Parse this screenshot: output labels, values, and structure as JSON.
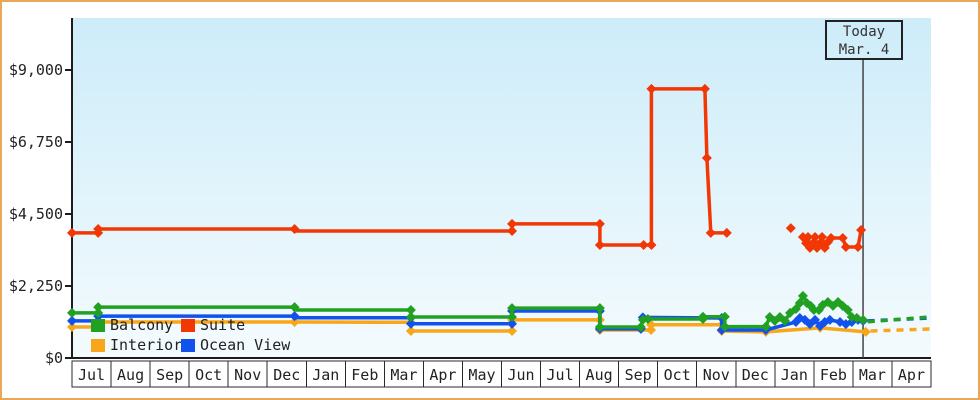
{
  "window": {
    "border_color": "#e9a75a"
  },
  "chart_data": {
    "type": "line",
    "title": "",
    "xlabel": "",
    "ylabel": "",
    "y_axis": {
      "min": 0,
      "max": 9000,
      "ticks": [
        0,
        2250,
        4500,
        6750,
        9000
      ],
      "tick_labels": [
        "$0",
        "$2,250",
        "$4,500",
        "$6,750",
        "$9,000"
      ]
    },
    "x_axis": {
      "months": [
        "Jul",
        "Aug",
        "Sep",
        "Oct",
        "Nov",
        "Dec",
        "Jan",
        "Feb",
        "Mar",
        "Apr",
        "May",
        "Jun",
        "Jul",
        "Aug",
        "Sep",
        "Oct",
        "Nov",
        "Dec",
        "Jan",
        "Feb",
        "Mar",
        "Apr"
      ]
    },
    "today": {
      "line1": "Today",
      "line2": "Mar. 4",
      "month_pos": 20.26
    },
    "grid": false,
    "legend_position": "bottom-left",
    "series": [
      {
        "name": "Interior",
        "color": "#f8a71b",
        "segments": [
          [
            [
              0.0,
              970,
              1
            ],
            [
              0.67,
              970,
              1
            ],
            [
              0.67,
              1125,
              1
            ],
            [
              5.7,
              1125,
              1
            ],
            [
              8.68,
              1115,
              1
            ],
            [
              8.68,
              845,
              1
            ],
            [
              11.27,
              845,
              1
            ],
            [
              11.27,
              1190,
              1
            ],
            [
              13.52,
              1190,
              1
            ],
            [
              13.52,
              875,
              1
            ],
            [
              14.83,
              875,
              1
            ],
            [
              14.83,
              1040,
              1
            ],
            [
              16.64,
              1040,
              1
            ],
            [
              16.64,
              845,
              1
            ],
            [
              17.77,
              815,
              1
            ],
            [
              19.16,
              940,
              1
            ],
            [
              20.33,
              815,
              1
            ]
          ]
        ],
        "future": [
          [
            20.45,
            845,
            0
          ],
          [
            21.97,
            905,
            0
          ]
        ]
      },
      {
        "name": "Ocean View",
        "color": "#1252ec",
        "segments": [
          [
            [
              0.0,
              1160,
              1
            ],
            [
              0.67,
              1160,
              1
            ],
            [
              0.67,
              1310,
              1
            ],
            [
              5.7,
              1310,
              1
            ],
            [
              5.7,
              1260,
              0
            ],
            [
              8.68,
              1260,
              1
            ],
            [
              8.68,
              1070,
              1
            ],
            [
              11.27,
              1070,
              1
            ],
            [
              11.27,
              1470,
              1
            ],
            [
              13.52,
              1470,
              1
            ],
            [
              13.52,
              910,
              1
            ],
            [
              14.57,
              910,
              1
            ],
            [
              14.62,
              1270,
              1
            ],
            [
              16.64,
              1250,
              1
            ],
            [
              16.64,
              875,
              1
            ],
            [
              17.77,
              875,
              1
            ],
            [
              18.54,
              1125,
              1
            ],
            [
              18.64,
              1250,
              1
            ],
            [
              18.77,
              1190,
              1
            ],
            [
              18.9,
              1060,
              1
            ],
            [
              19.03,
              1190,
              1
            ],
            [
              19.16,
              1000,
              1
            ],
            [
              19.28,
              1125,
              1
            ],
            [
              19.41,
              1190,
              1
            ],
            [
              19.67,
              1125,
              1
            ],
            [
              19.82,
              1060,
              1
            ],
            [
              19.97,
              1125,
              1
            ],
            [
              20.13,
              1190,
              1
            ],
            [
              20.26,
              1160,
              1
            ]
          ]
        ],
        "future": [
          [
            20.38,
            1160,
            0
          ],
          [
            21.97,
            1250,
            0
          ]
        ]
      },
      {
        "name": "Balcony",
        "color": "#21a121",
        "segments": [
          [
            [
              0.0,
              1410,
              1
            ],
            [
              0.67,
              1410,
              1
            ],
            [
              0.67,
              1590,
              1
            ],
            [
              5.7,
              1590,
              1
            ],
            [
              5.7,
              1500,
              0
            ],
            [
              8.68,
              1500,
              1
            ],
            [
              8.68,
              1280,
              1
            ],
            [
              11.27,
              1280,
              1
            ],
            [
              11.27,
              1560,
              1
            ],
            [
              13.52,
              1560,
              1
            ],
            [
              13.52,
              970,
              1
            ],
            [
              14.57,
              970,
              1
            ],
            [
              14.62,
              1190,
              1
            ],
            [
              14.75,
              1220,
              1
            ],
            [
              16.16,
              1220,
              1
            ],
            [
              16.16,
              1290,
              1
            ],
            [
              16.72,
              1290,
              1
            ],
            [
              16.72,
              980,
              1
            ],
            [
              17.77,
              980,
              1
            ],
            [
              17.87,
              1280,
              1
            ],
            [
              18.0,
              1160,
              1
            ],
            [
              18.13,
              1280,
              1
            ],
            [
              18.26,
              1160,
              1
            ],
            [
              18.39,
              1410,
              1
            ],
            [
              18.54,
              1530,
              1
            ],
            [
              18.64,
              1720,
              1
            ],
            [
              18.72,
              1940,
              1
            ],
            [
              18.82,
              1720,
              1
            ],
            [
              18.92,
              1630,
              1
            ],
            [
              19.0,
              1500,
              1
            ],
            [
              19.13,
              1500,
              1
            ],
            [
              19.23,
              1660,
              1
            ],
            [
              19.36,
              1750,
              1
            ],
            [
              19.49,
              1630,
              1
            ],
            [
              19.62,
              1750,
              1
            ],
            [
              19.74,
              1630,
              1
            ],
            [
              19.87,
              1500,
              1
            ],
            [
              19.97,
              1280,
              1
            ],
            [
              20.1,
              1250,
              1
            ],
            [
              20.26,
              1190,
              1
            ]
          ]
        ],
        "future": [
          [
            20.38,
            1130,
            0
          ],
          [
            21.97,
            1280,
            0
          ]
        ]
      },
      {
        "name": "Suite",
        "color": "#f23705",
        "segments": [
          [
            [
              0.0,
              3910,
              1
            ],
            [
              0.67,
              3910,
              1
            ],
            [
              0.67,
              4030,
              1
            ],
            [
              5.7,
              4030,
              1
            ],
            [
              5.7,
              3970,
              0
            ],
            [
              11.27,
              3970,
              1
            ],
            [
              11.27,
              4190,
              1
            ],
            [
              13.52,
              4190,
              1
            ],
            [
              13.52,
              3530,
              1
            ],
            [
              14.64,
              3530,
              1
            ],
            [
              14.84,
              3530,
              1
            ],
            [
              14.84,
              8410,
              1
            ],
            [
              16.21,
              8410,
              1
            ],
            [
              16.26,
              6250,
              1
            ],
            [
              16.36,
              3910,
              1
            ],
            [
              16.77,
              3910,
              1
            ]
          ],
          [
            [
              18.41,
              4060,
              1
            ]
          ],
          [
            [
              18.72,
              3780,
              1
            ],
            [
              18.8,
              3590,
              1
            ],
            [
              18.85,
              3780,
              1
            ],
            [
              18.9,
              3440,
              1
            ],
            [
              18.98,
              3590,
              1
            ],
            [
              19.03,
              3780,
              1
            ],
            [
              19.08,
              3440,
              1
            ],
            [
              19.16,
              3590,
              1
            ],
            [
              19.21,
              3780,
              1
            ],
            [
              19.28,
              3440,
              1
            ],
            [
              19.36,
              3620,
              1
            ],
            [
              19.44,
              3750,
              1
            ],
            [
              19.74,
              3750,
              1
            ],
            [
              19.82,
              3470,
              1
            ],
            [
              20.13,
              3470,
              1
            ],
            [
              20.21,
              4000,
              1
            ]
          ]
        ],
        "future": null
      }
    ],
    "legend": {
      "row1": [
        "Balcony",
        "Suite"
      ],
      "row2": [
        "Interior",
        "Ocean View"
      ]
    },
    "colors": {
      "axis": "#1c1c1c",
      "text": "#222222",
      "plot_bg_top": "#cdecf9",
      "plot_bg_bottom": "#f4fbfe"
    }
  }
}
